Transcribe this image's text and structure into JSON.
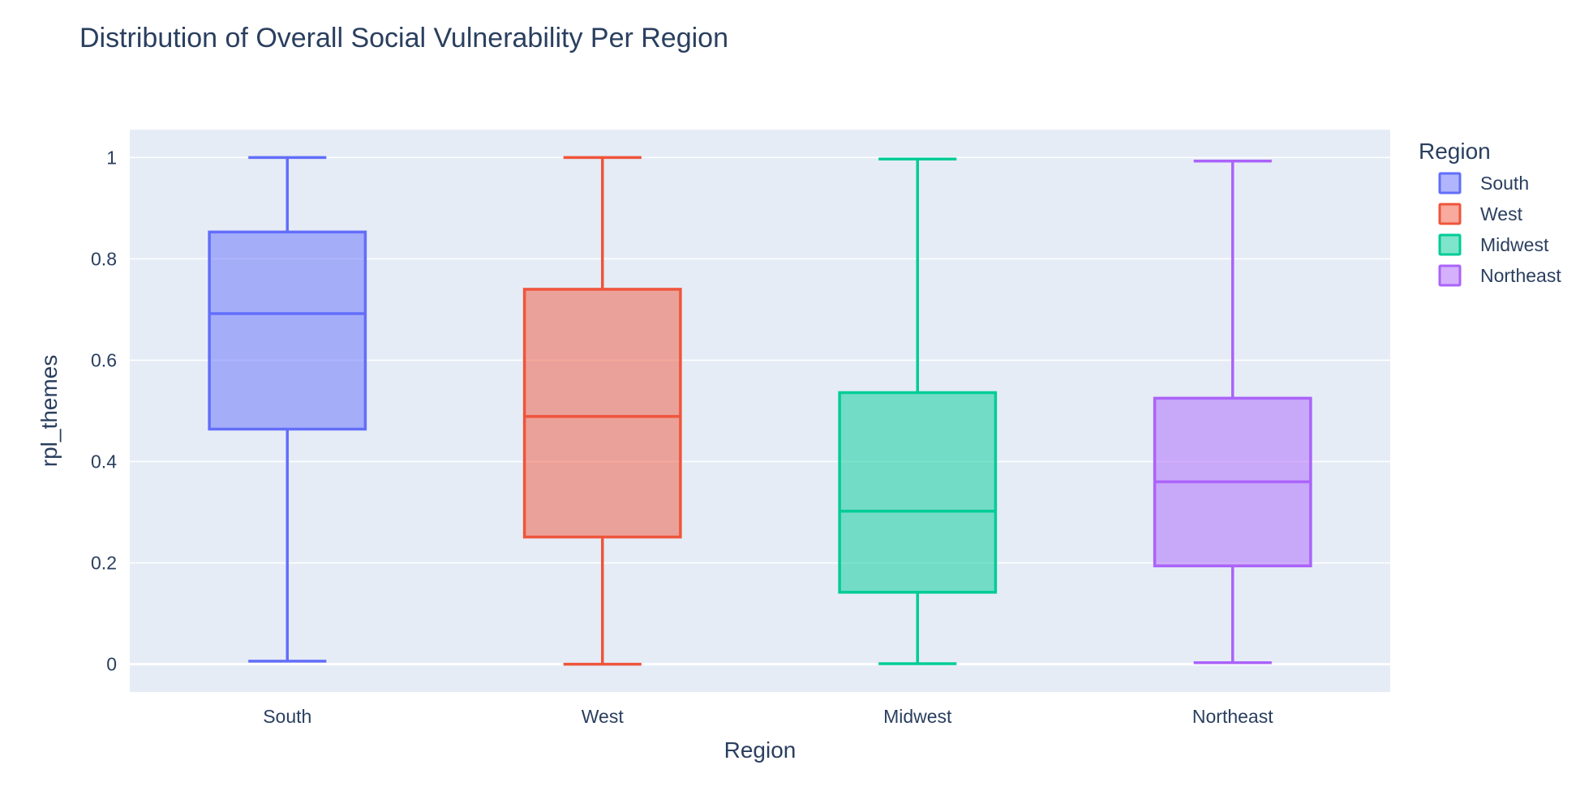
{
  "chart_data": {
    "type": "box",
    "title": "Distribution of Overall Social Vulnerability Per Region",
    "xlabel": "Region",
    "ylabel": "rpl_themes",
    "ylim": [
      -0.055,
      1.055
    ],
    "yticks": [
      0,
      0.2,
      0.4,
      0.6,
      0.8,
      1
    ],
    "ytick_labels": [
      "0",
      "0.2",
      "0.4",
      "0.6",
      "0.8",
      "1"
    ],
    "grid": true,
    "legend_title": "Region",
    "legend_position": "top-right",
    "categories": [
      "South",
      "West",
      "Midwest",
      "Northeast"
    ],
    "series": [
      {
        "name": "South",
        "color": "#636efa",
        "min": 0.006,
        "q1": 0.464,
        "median": 0.692,
        "q3": 0.853,
        "max": 1.0
      },
      {
        "name": "West",
        "color": "#ef553b",
        "min": 0.0,
        "q1": 0.251,
        "median": 0.489,
        "q3": 0.74,
        "max": 1.0
      },
      {
        "name": "Midwest",
        "color": "#00cc96",
        "min": 0.001,
        "q1": 0.142,
        "median": 0.302,
        "q3": 0.536,
        "max": 0.997
      },
      {
        "name": "Northeast",
        "color": "#ab63fa",
        "min": 0.003,
        "q1": 0.194,
        "median": 0.36,
        "q3": 0.525,
        "max": 0.993
      }
    ]
  }
}
